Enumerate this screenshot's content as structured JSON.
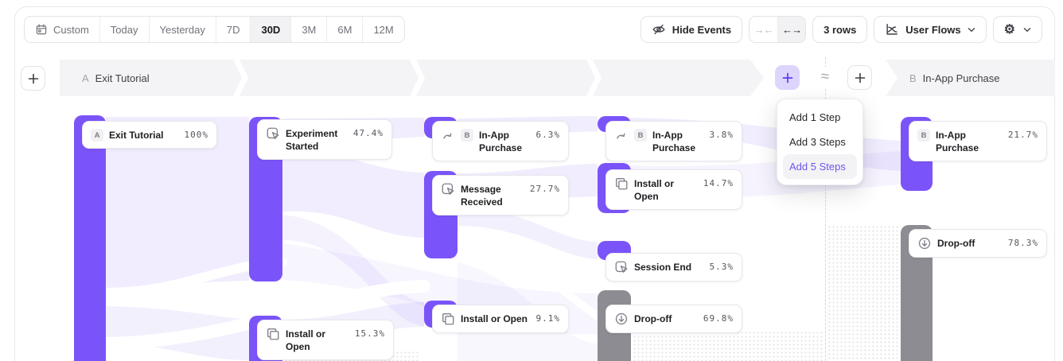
{
  "toolbar": {
    "date_ranges": [
      "Custom",
      "Today",
      "Yesterday",
      "7D",
      "30D",
      "3M",
      "6M",
      "12M"
    ],
    "active_range": "30D",
    "hide_events_label": "Hide Events",
    "collapse_glyph": "→←",
    "expand_glyph": "←→",
    "rows_label": "3 rows",
    "view_selector_label": "User Flows"
  },
  "flow": {
    "section_a": {
      "letter": "A",
      "title": "Exit Tutorial"
    },
    "section_b": {
      "letter": "B",
      "title": "In-App Purchase"
    },
    "approx_symbol": "≈",
    "add_menu": {
      "items": [
        "Add 1 Step",
        "Add 3 Steps",
        "Add 5 Steps"
      ],
      "highlighted": "Add 5 Steps"
    },
    "nodes": [
      {
        "id": "exit-tutorial",
        "label": "Exit Tutorial",
        "pct": "100%",
        "icon": "letter",
        "letter": "A",
        "color": "purple"
      },
      {
        "id": "experiment-started",
        "label": "Experiment Started",
        "pct": "47.4%",
        "icon": "click",
        "color": "purple"
      },
      {
        "id": "install-open-a",
        "label": "Install or Open",
        "pct": "15.3%",
        "icon": "copy",
        "color": "purple"
      },
      {
        "id": "in-app-purchase-1",
        "label": "In-App Purchase",
        "pct": "6.3%",
        "icon": "jump",
        "letter": "B",
        "color": "purple"
      },
      {
        "id": "message-received",
        "label": "Message Received",
        "pct": "27.7%",
        "icon": "click",
        "color": "purple"
      },
      {
        "id": "install-open-b",
        "label": "Install or Open",
        "pct": "9.1%",
        "icon": "copy",
        "color": "purple"
      },
      {
        "id": "in-app-purchase-2",
        "label": "In-App Purchase",
        "pct": "3.8%",
        "icon": "jump",
        "letter": "B",
        "color": "purple"
      },
      {
        "id": "install-open-c",
        "label": "Install or Open",
        "pct": "14.7%",
        "icon": "copy",
        "color": "purple"
      },
      {
        "id": "session-end",
        "label": "Session End",
        "pct": "5.3%",
        "icon": "click",
        "color": "purple"
      },
      {
        "id": "drop-off-1",
        "label": "Drop-off",
        "pct": "69.8%",
        "icon": "dropoff",
        "color": "gray"
      },
      {
        "id": "in-app-purchase-b",
        "label": "In-App Purchase",
        "pct": "21.7%",
        "icon": "letter",
        "letter": "B",
        "color": "purple"
      },
      {
        "id": "drop-off-2",
        "label": "Drop-off",
        "pct": "78.3%",
        "icon": "dropoff",
        "color": "gray"
      }
    ]
  },
  "colors": {
    "bar_purple": "#7b54f9",
    "bar_gray": "#8c8c92",
    "ribbon": "#7b5bf5",
    "accent_text": "#6e55ef",
    "band_bg": "#f4f4f6"
  }
}
